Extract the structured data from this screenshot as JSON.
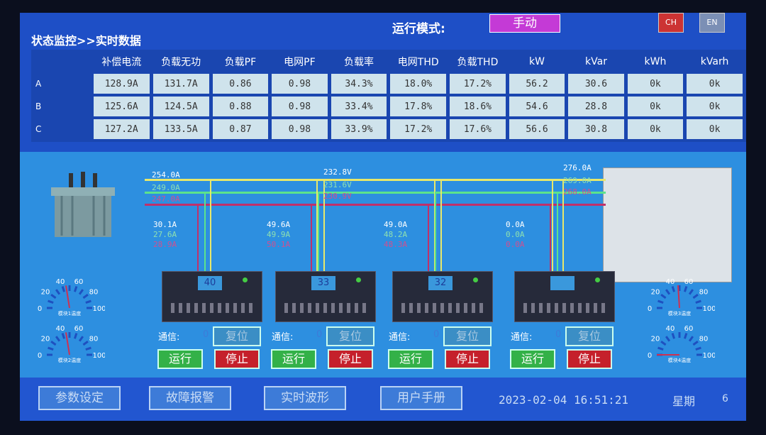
{
  "header": {
    "title": "状态监控>>实时数据",
    "mode_label": "运行模式:",
    "mode_value": "手动",
    "lang_cn": "CH",
    "lang_en": "EN"
  },
  "table": {
    "columns": [
      "补偿电流",
      "负载无功",
      "负载PF",
      "电网PF",
      "负载率",
      "电网THD",
      "负载THD",
      "kW",
      "kVar",
      "kWh",
      "kVarh"
    ],
    "rows": [
      {
        "phase": "A",
        "values": [
          "128.9A",
          "131.7A",
          "0.86",
          "0.98",
          "34.3%",
          "18.0%",
          "17.2%",
          "56.2",
          "30.6",
          "0k",
          "0k"
        ]
      },
      {
        "phase": "B",
        "values": [
          "125.6A",
          "124.5A",
          "0.88",
          "0.98",
          "33.4%",
          "17.8%",
          "18.6%",
          "54.6",
          "28.8",
          "0k",
          "0k"
        ]
      },
      {
        "phase": "C",
        "values": [
          "127.2A",
          "133.5A",
          "0.87",
          "0.98",
          "33.9%",
          "17.2%",
          "17.6%",
          "56.6",
          "30.8",
          "0k",
          "0k"
        ]
      }
    ]
  },
  "diagram": {
    "source": [
      "254.0A",
      "249.0A",
      "247.0A"
    ],
    "voltage": [
      "232.8V",
      "231.6V",
      "230.9V"
    ],
    "load": [
      "276.0A",
      "269.0A",
      "268.0A"
    ],
    "modules": [
      {
        "currents": [
          "30.1A",
          "27.6A",
          "28.9A"
        ],
        "display": "40",
        "comm_label": "通信:",
        "comm_value": "0",
        "reset": "复位",
        "run": "运行",
        "stop": "停止"
      },
      {
        "currents": [
          "49.6A",
          "49.9A",
          "50.1A"
        ],
        "display": "33",
        "comm_label": "通信:",
        "comm_value": "0",
        "reset": "复位",
        "run": "运行",
        "stop": "停止"
      },
      {
        "currents": [
          "49.0A",
          "48.2A",
          "48.3A"
        ],
        "display": "32",
        "comm_label": "通信:",
        "comm_value": "0",
        "reset": "复位",
        "run": "运行",
        "stop": "停止"
      },
      {
        "currents": [
          "0.0A",
          "0.0A",
          "0.0A"
        ],
        "display": "",
        "comm_label": "通信:",
        "comm_value": "0",
        "reset": "复位",
        "run": "运行",
        "stop": "停止"
      }
    ],
    "gauges": [
      {
        "label": "模块1温度",
        "value": 45
      },
      {
        "label": "模块2温度",
        "value": 45
      },
      {
        "label": "模块3温度",
        "value": 48
      },
      {
        "label": "模块4温度",
        "value": 0
      }
    ],
    "gauge_ticks": [
      "0",
      "20",
      "40",
      "60",
      "80",
      "100"
    ],
    "colors": {
      "phaseA": "#e8e86a",
      "phaseB": "#5de38a",
      "phaseC": "#c0306a"
    }
  },
  "footer": {
    "buttons": [
      "参数设定",
      "故障报警",
      "实时波形",
      "用户手册"
    ],
    "datetime": "2023-02-04 16:51:21",
    "week_label": "星期",
    "week_value": "6"
  }
}
